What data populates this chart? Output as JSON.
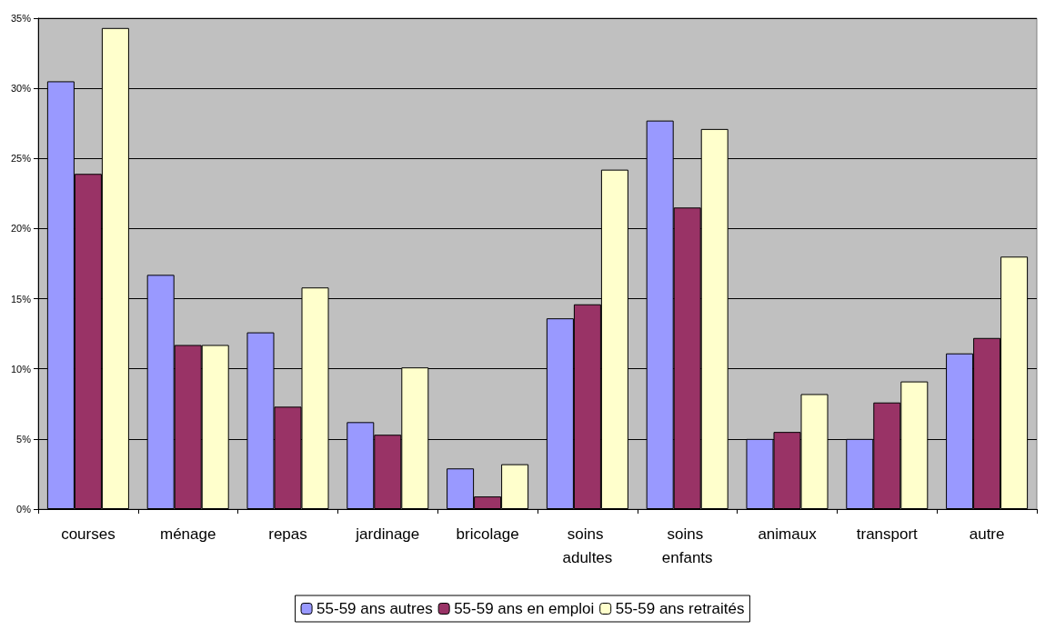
{
  "chart_data": {
    "type": "bar",
    "categories": [
      "courses",
      "ménage",
      "repas",
      "jardinage",
      "bricolage",
      "soins adultes",
      "soins enfants",
      "animaux",
      "transport",
      "autre"
    ],
    "series": [
      {
        "name": "55-59 ans autres",
        "color": "#9999ff",
        "values": [
          30.5,
          16.7,
          12.6,
          6.2,
          2.9,
          13.6,
          27.7,
          5.0,
          5.0,
          11.1
        ]
      },
      {
        "name": "55-59 ans en emploi",
        "color": "#993366",
        "values": [
          23.9,
          11.7,
          7.3,
          5.3,
          0.9,
          14.6,
          21.5,
          5.5,
          7.6,
          12.2
        ]
      },
      {
        "name": "55-59 ans retraités",
        "color": "#ffffcc",
        "values": [
          34.3,
          11.7,
          15.8,
          10.1,
          3.2,
          24.2,
          27.1,
          8.2,
          9.1,
          18.0
        ]
      }
    ],
    "ylim": [
      0,
      35
    ],
    "yticks": [
      {
        "value": 0,
        "label": "0%"
      },
      {
        "value": 5,
        "label": "5%"
      },
      {
        "value": 10,
        "label": "10%"
      },
      {
        "value": 15,
        "label": "15%"
      },
      {
        "value": 20,
        "label": "20%"
      },
      {
        "value": 25,
        "label": "25%"
      },
      {
        "value": 30,
        "label": "30%"
      },
      {
        "value": 35,
        "label": "35%"
      }
    ],
    "grid": "y",
    "legend": "bottom"
  }
}
